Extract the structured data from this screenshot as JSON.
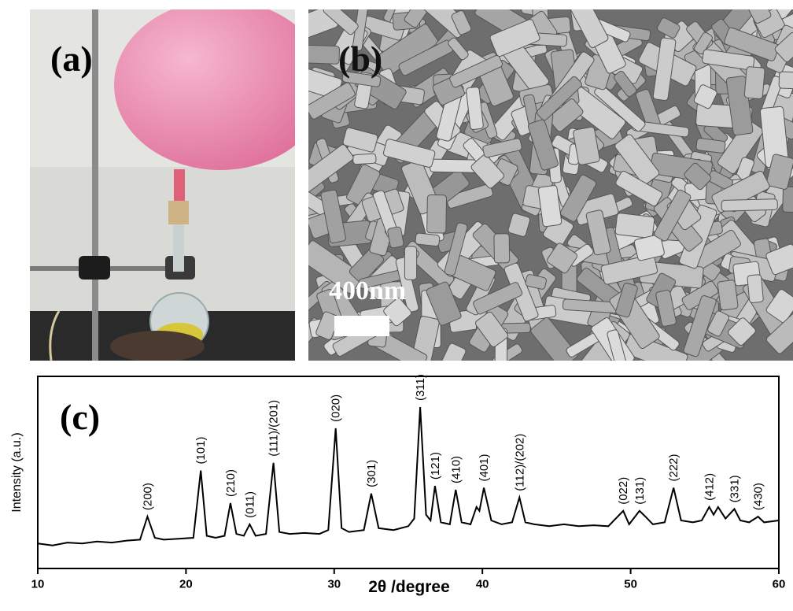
{
  "panels": {
    "a": {
      "label": "(a)"
    },
    "b": {
      "label": "(b)",
      "scale_bar": "400nm"
    }
  },
  "chart_data": {
    "type": "line",
    "panel_label": "(c)",
    "x_label": "2θ /degree",
    "y_label": "Intensity (a.u.)",
    "xlim": [
      10,
      60
    ],
    "xticks": [
      10,
      20,
      30,
      40,
      50,
      60
    ],
    "ylim": [
      0,
      100
    ],
    "color": "#000000",
    "x": [
      10,
      11,
      12,
      13,
      14,
      15,
      16,
      16.9,
      17.4,
      17.9,
      18.5,
      19.5,
      20.5,
      21,
      21.4,
      22,
      22.6,
      23,
      23.4,
      23.9,
      24.3,
      24.7,
      25.4,
      25.9,
      26.3,
      27,
      28,
      29,
      29.6,
      30.1,
      30.5,
      31,
      32,
      32.5,
      33,
      34,
      35,
      35.4,
      35.8,
      36.2,
      36.5,
      36.8,
      37.2,
      37.8,
      38.2,
      38.6,
      39.2,
      39.6,
      39.8,
      40.1,
      40.6,
      41.3,
      42,
      42.5,
      42.9,
      43.5,
      44.5,
      45.5,
      46.5,
      47.5,
      48.5,
      49.5,
      49.9,
      50.6,
      51,
      51.5,
      52.3,
      52.9,
      53.4,
      54.2,
      54.8,
      55.3,
      55.6,
      55.9,
      56.4,
      57,
      57.4,
      58,
      58.6,
      59,
      60
    ],
    "values": [
      13,
      12,
      13.5,
      13,
      14,
      13.5,
      14.5,
      15,
      27,
      16,
      15,
      15.5,
      16,
      51,
      17,
      16,
      17,
      34,
      18,
      17,
      23,
      17,
      18,
      55,
      19,
      18,
      18.5,
      18,
      20,
      73,
      21,
      19,
      20,
      39,
      21,
      20,
      22,
      26,
      84,
      28,
      25,
      43,
      24,
      23,
      41,
      24,
      23,
      32,
      30,
      42,
      25,
      23,
      24,
      37,
      24,
      23,
      22,
      23,
      22,
      22.5,
      22,
      30,
      23,
      30,
      27,
      23,
      24,
      42,
      25,
      24,
      25,
      32,
      28,
      32,
      26,
      31,
      25,
      24,
      27,
      24,
      25
    ],
    "peaks": [
      {
        "label": "(200)",
        "x": 17.4
      },
      {
        "label": "(101)",
        "x": 21
      },
      {
        "label": "(210)",
        "x": 23
      },
      {
        "label": "(011)",
        "x": 24.3
      },
      {
        "label": "(111)/(201)",
        "x": 25.9
      },
      {
        "label": "(020)",
        "x": 30.1
      },
      {
        "label": "(301)",
        "x": 32.5
      },
      {
        "label": "(311)",
        "x": 35.8
      },
      {
        "label": "(121)",
        "x": 36.8
      },
      {
        "label": "(410)",
        "x": 38.2
      },
      {
        "label": "(401)",
        "x": 40.1
      },
      {
        "label": "(112)/(202)",
        "x": 42.5
      },
      {
        "label": "(022)",
        "x": 49.5
      },
      {
        "label": "(131)",
        "x": 50.6
      },
      {
        "label": "(222)",
        "x": 52.9
      },
      {
        "label": "(412)",
        "x": 55.3
      },
      {
        "label": "(331)",
        "x": 57
      },
      {
        "label": "(430)",
        "x": 58.6
      }
    ]
  }
}
